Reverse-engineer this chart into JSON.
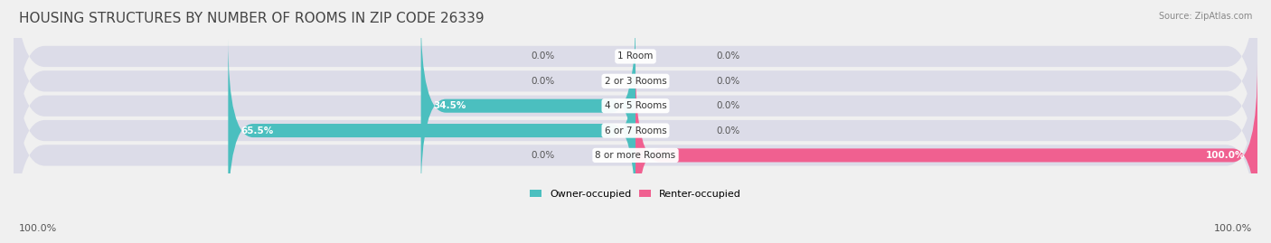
{
  "title": "HOUSING STRUCTURES BY NUMBER OF ROOMS IN ZIP CODE 26339",
  "source": "Source: ZipAtlas.com",
  "categories": [
    "1 Room",
    "2 or 3 Rooms",
    "4 or 5 Rooms",
    "6 or 7 Rooms",
    "8 or more Rooms"
  ],
  "owner_values": [
    0.0,
    0.0,
    34.5,
    65.5,
    0.0
  ],
  "renter_values": [
    0.0,
    0.0,
    0.0,
    0.0,
    100.0
  ],
  "owner_color": "#4bbfbf",
  "renter_color": "#f06090",
  "bg_color": "#f0f0f0",
  "bar_bg_color": "#dcdce8",
  "title_fontsize": 11,
  "axis_label_fontsize": 8,
  "bar_label_fontsize": 7.5,
  "category_fontsize": 7.5,
  "xlim": 100,
  "bar_height": 0.55,
  "figsize": [
    14.06,
    2.69
  ],
  "dpi": 100
}
